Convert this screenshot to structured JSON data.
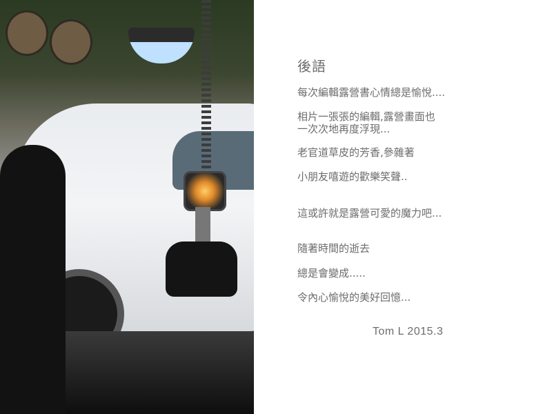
{
  "afterword": {
    "title": "後語",
    "lines": [
      "每次編輯露營書心情總是愉悅....",
      "相片一張張的編輯,露營畫面也",
      "一次次地再度浮現...",
      "老官道草皮的芳香,參雜著",
      "小朋友嘻遊的歡樂笑聲..",
      "這或許就是露營可愛的魔力吧...",
      "隨著時間的逝去",
      "總是會變成.....",
      "令內心愉悅的美好回憶..."
    ],
    "signature": "Tom L 2015.3"
  }
}
